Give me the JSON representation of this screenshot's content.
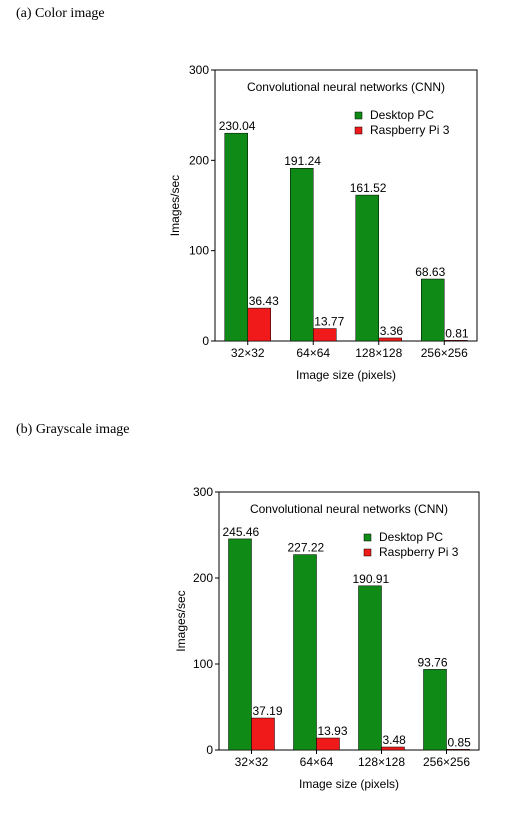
{
  "captions": {
    "a": "(a) Color image",
    "b": "(b) Grayscale image"
  },
  "colors": {
    "desktop": "#0f8a16",
    "raspberry": "#f11a1a"
  },
  "chart_data": [
    {
      "type": "bar",
      "title": "Convolutional neural networks (CNN)",
      "xlabel": "Image size (pixels)",
      "ylabel": "Images/sec",
      "ylim": [
        0,
        300
      ],
      "yticks": [
        "0",
        "100",
        "200",
        "300"
      ],
      "categories": [
        "32×32",
        "64×64",
        "128×128",
        "256×256"
      ],
      "legend_position": "top-right",
      "series": [
        {
          "name": "Desktop PC",
          "values": [
            230.04,
            191.24,
            161.52,
            68.63
          ],
          "labels": [
            "230.04",
            "191.24",
            "161.52",
            "68.63"
          ]
        },
        {
          "name": "Raspberry Pi 3",
          "values": [
            36.43,
            13.77,
            3.36,
            0.81
          ],
          "labels": [
            "36.43",
            "13.77",
            "3.36",
            "0.81"
          ]
        }
      ]
    },
    {
      "type": "bar",
      "title": "Convolutional neural networks (CNN)",
      "xlabel": "Image size (pixels)",
      "ylabel": "Images/sec",
      "ylim": [
        0,
        300
      ],
      "yticks": [
        "0",
        "100",
        "200",
        "300"
      ],
      "categories": [
        "32×32",
        "64×64",
        "128×128",
        "256×256"
      ],
      "legend_position": "top-right",
      "series": [
        {
          "name": "Desktop PC",
          "values": [
            245.46,
            227.22,
            190.91,
            93.76
          ],
          "labels": [
            "245.46",
            "227.22",
            "190.91",
            "93.76"
          ]
        },
        {
          "name": "Raspberry Pi 3",
          "values": [
            37.19,
            13.93,
            3.48,
            0.85
          ],
          "labels": [
            "37.19",
            "13.93",
            "3.48",
            "0.85"
          ]
        }
      ]
    }
  ]
}
